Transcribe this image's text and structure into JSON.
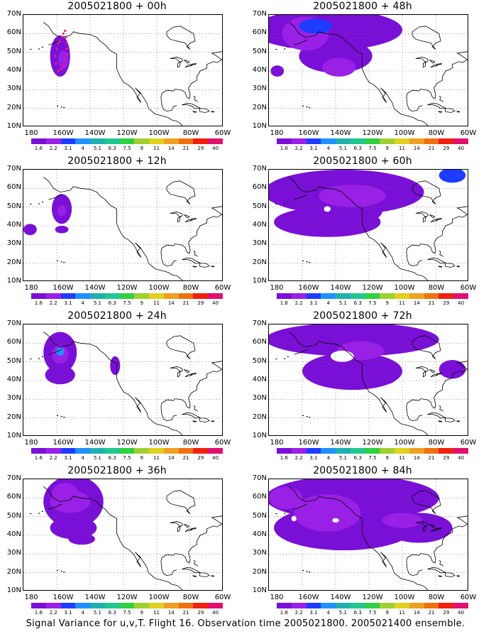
{
  "caption": "Signal Variance for u,v,T. Flight 16. Observation time 2005021800. 2005021400 ensemble.",
  "lat_labels": [
    "70N",
    "60N",
    "50N",
    "40N",
    "30N",
    "20N",
    "10N"
  ],
  "lon_labels": [
    "180",
    "160W",
    "140W",
    "120W",
    "100W",
    "80W",
    "60W"
  ],
  "colorbar": {
    "colors": [
      "#7a10d8",
      "#9a20e8",
      "#1e3cff",
      "#1f90ff",
      "#20b0b0",
      "#20c890",
      "#30d040",
      "#a0d030",
      "#e0d020",
      "#f0a020",
      "#f07010",
      "#f02010",
      "#e01070"
    ],
    "labels": [
      "1.6",
      "2.2",
      "3.1",
      "4",
      "5.1",
      "6.3",
      "7.5",
      "9",
      "11",
      "14",
      "21",
      "29",
      "40"
    ]
  },
  "panels": [
    {
      "title": "2005021800 + 00h"
    },
    {
      "title": "2005021800 + 48h"
    },
    {
      "title": "2005021800 + 12h"
    },
    {
      "title": "2005021800 + 60h"
    },
    {
      "title": "2005021800 + 24h"
    },
    {
      "title": "2005021800 + 72h"
    },
    {
      "title": "2005021800 + 36h"
    },
    {
      "title": "2005021800 + 84h"
    }
  ]
}
